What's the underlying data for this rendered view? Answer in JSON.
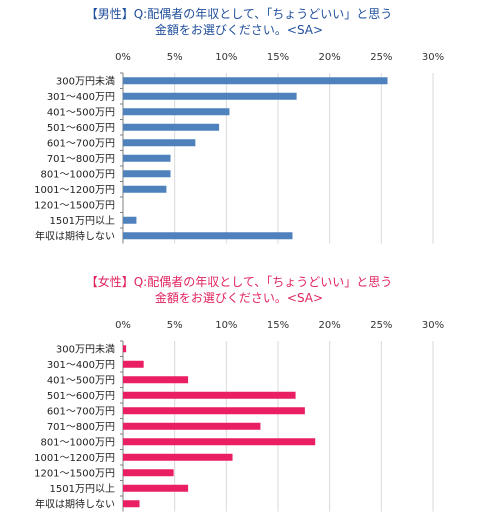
{
  "chart_data": [
    {
      "type": "bar",
      "orientation": "horizontal",
      "title_tag": "【男性】",
      "title_line1": "Q:配偶者の年収として、「ちょうどいい」と思う",
      "title_line2": "金額をお選びください。<SA>",
      "title_color": "#1f4e9a",
      "bar_color": "#4f81bd",
      "categories": [
        "300万円未満",
        "301～400万円",
        "401～500万円",
        "501～600万円",
        "601～700万円",
        "701～800万円",
        "801～1000万円",
        "1001～1200万円",
        "1201～1500万円",
        "1501万円以上",
        "年収は期待しない"
      ],
      "values": [
        25.6,
        16.8,
        10.3,
        9.3,
        7.0,
        4.6,
        4.6,
        4.2,
        0.0,
        1.3,
        16.4
      ],
      "xlim": [
        0,
        30
      ],
      "xticks": [
        "0%",
        "5%",
        "10%",
        "15%",
        "20%",
        "25%",
        "30%"
      ],
      "grid": true
    },
    {
      "type": "bar",
      "orientation": "horizontal",
      "title_tag": "【女性】",
      "title_line1": "Q:配偶者の年収として、「ちょうどいい」と思う",
      "title_line2": "金額をお選びください。<SA>",
      "title_color": "#e0245e",
      "bar_color": "#e91e63",
      "categories": [
        "300万円未満",
        "301～400万円",
        "401～500万円",
        "501～600万円",
        "601～700万円",
        "701～800万円",
        "801～1000万円",
        "1001～1200万円",
        "1201～1500万円",
        "1501万円以上",
        "年収は期待しない"
      ],
      "values": [
        0.3,
        2.0,
        6.3,
        16.7,
        17.6,
        13.3,
        18.6,
        10.6,
        4.9,
        6.3,
        1.6
      ],
      "xlim": [
        0,
        30
      ],
      "xticks": [
        "0%",
        "5%",
        "10%",
        "15%",
        "20%",
        "25%",
        "30%"
      ],
      "grid": true
    }
  ]
}
